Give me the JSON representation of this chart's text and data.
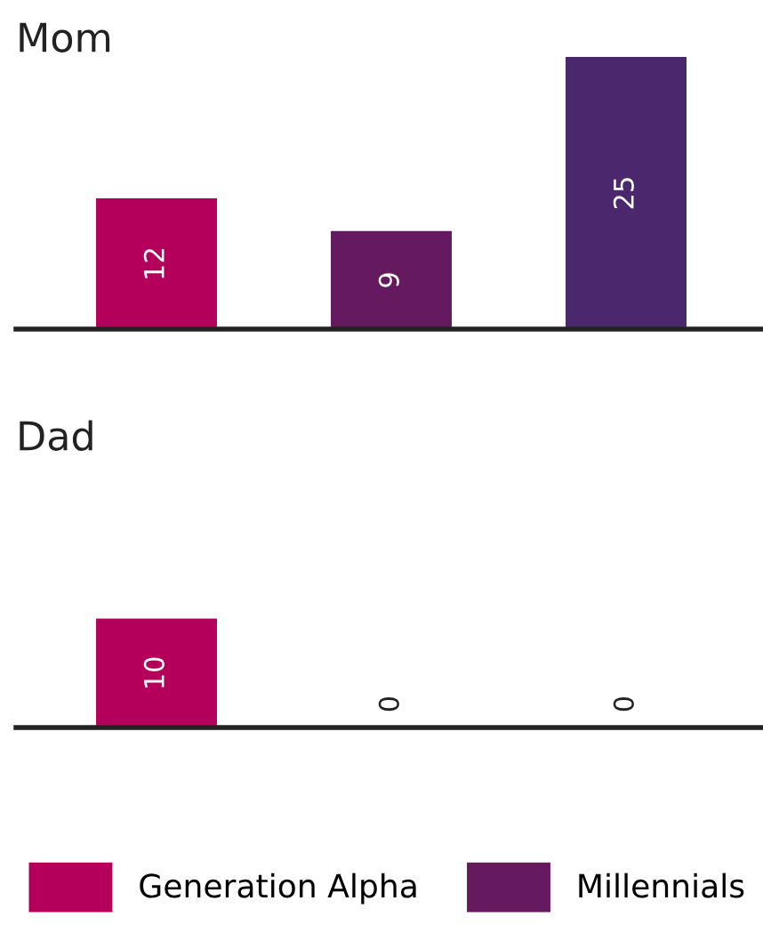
{
  "chart_data": [
    {
      "type": "bar",
      "title": "Mom",
      "categories": [
        null,
        null,
        null
      ],
      "stacked": true,
      "data_labels": true,
      "legend": "bottom",
      "tick_labels": false,
      "series": [
        {
          "name": "Generation Alpha",
          "color": "#b5005b",
          "values": [
            12,
            null,
            null
          ]
        },
        {
          "name": "Millennials",
          "color": "#65195f",
          "values": [
            null,
            9,
            null
          ]
        },
        {
          "color": "#4b286d",
          "values": [
            null,
            null,
            25
          ]
        }
      ]
    },
    {
      "type": "bar",
      "title": "Dad",
      "categories": [
        null,
        null,
        null
      ],
      "stacked": true,
      "data_labels": true,
      "legend": "bottom",
      "tick_labels": false,
      "series": [
        {
          "name": "Generation Alpha",
          "color": "#b5005b",
          "values": [
            10,
            null,
            null
          ]
        },
        {
          "name": "Millennials",
          "color": "#65195f",
          "values": [
            null,
            0,
            null
          ]
        },
        {
          "color": "#4b286d",
          "values": [
            null,
            null,
            0
          ]
        }
      ]
    }
  ]
}
